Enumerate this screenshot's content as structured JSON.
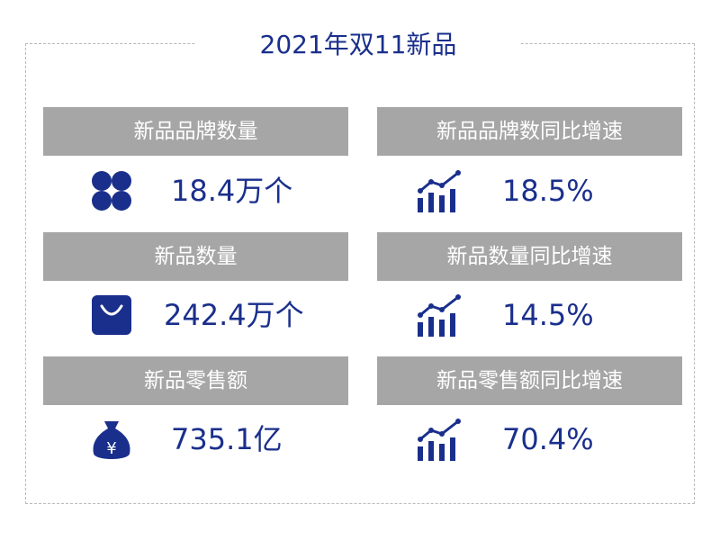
{
  "title": "2021年双11新品",
  "accent_color": "#1a2f8c",
  "label_bg": "#a6a6a6",
  "cards": [
    {
      "label": "新品品牌数量",
      "value": "18.4万个",
      "icon": "clover-icon"
    },
    {
      "label": "新品品牌数同比增速",
      "value": "18.5%",
      "icon": "growth-chart-icon"
    },
    {
      "label": "新品数量",
      "value": "242.4万个",
      "icon": "shopping-bag-icon"
    },
    {
      "label": "新品数量同比增速",
      "value": "14.5%",
      "icon": "growth-chart-icon"
    },
    {
      "label": "新品零售额",
      "value": "735.1亿",
      "icon": "money-bag-icon"
    },
    {
      "label": "新品零售额同比增速",
      "value": "70.4%",
      "icon": "growth-chart-icon"
    }
  ]
}
